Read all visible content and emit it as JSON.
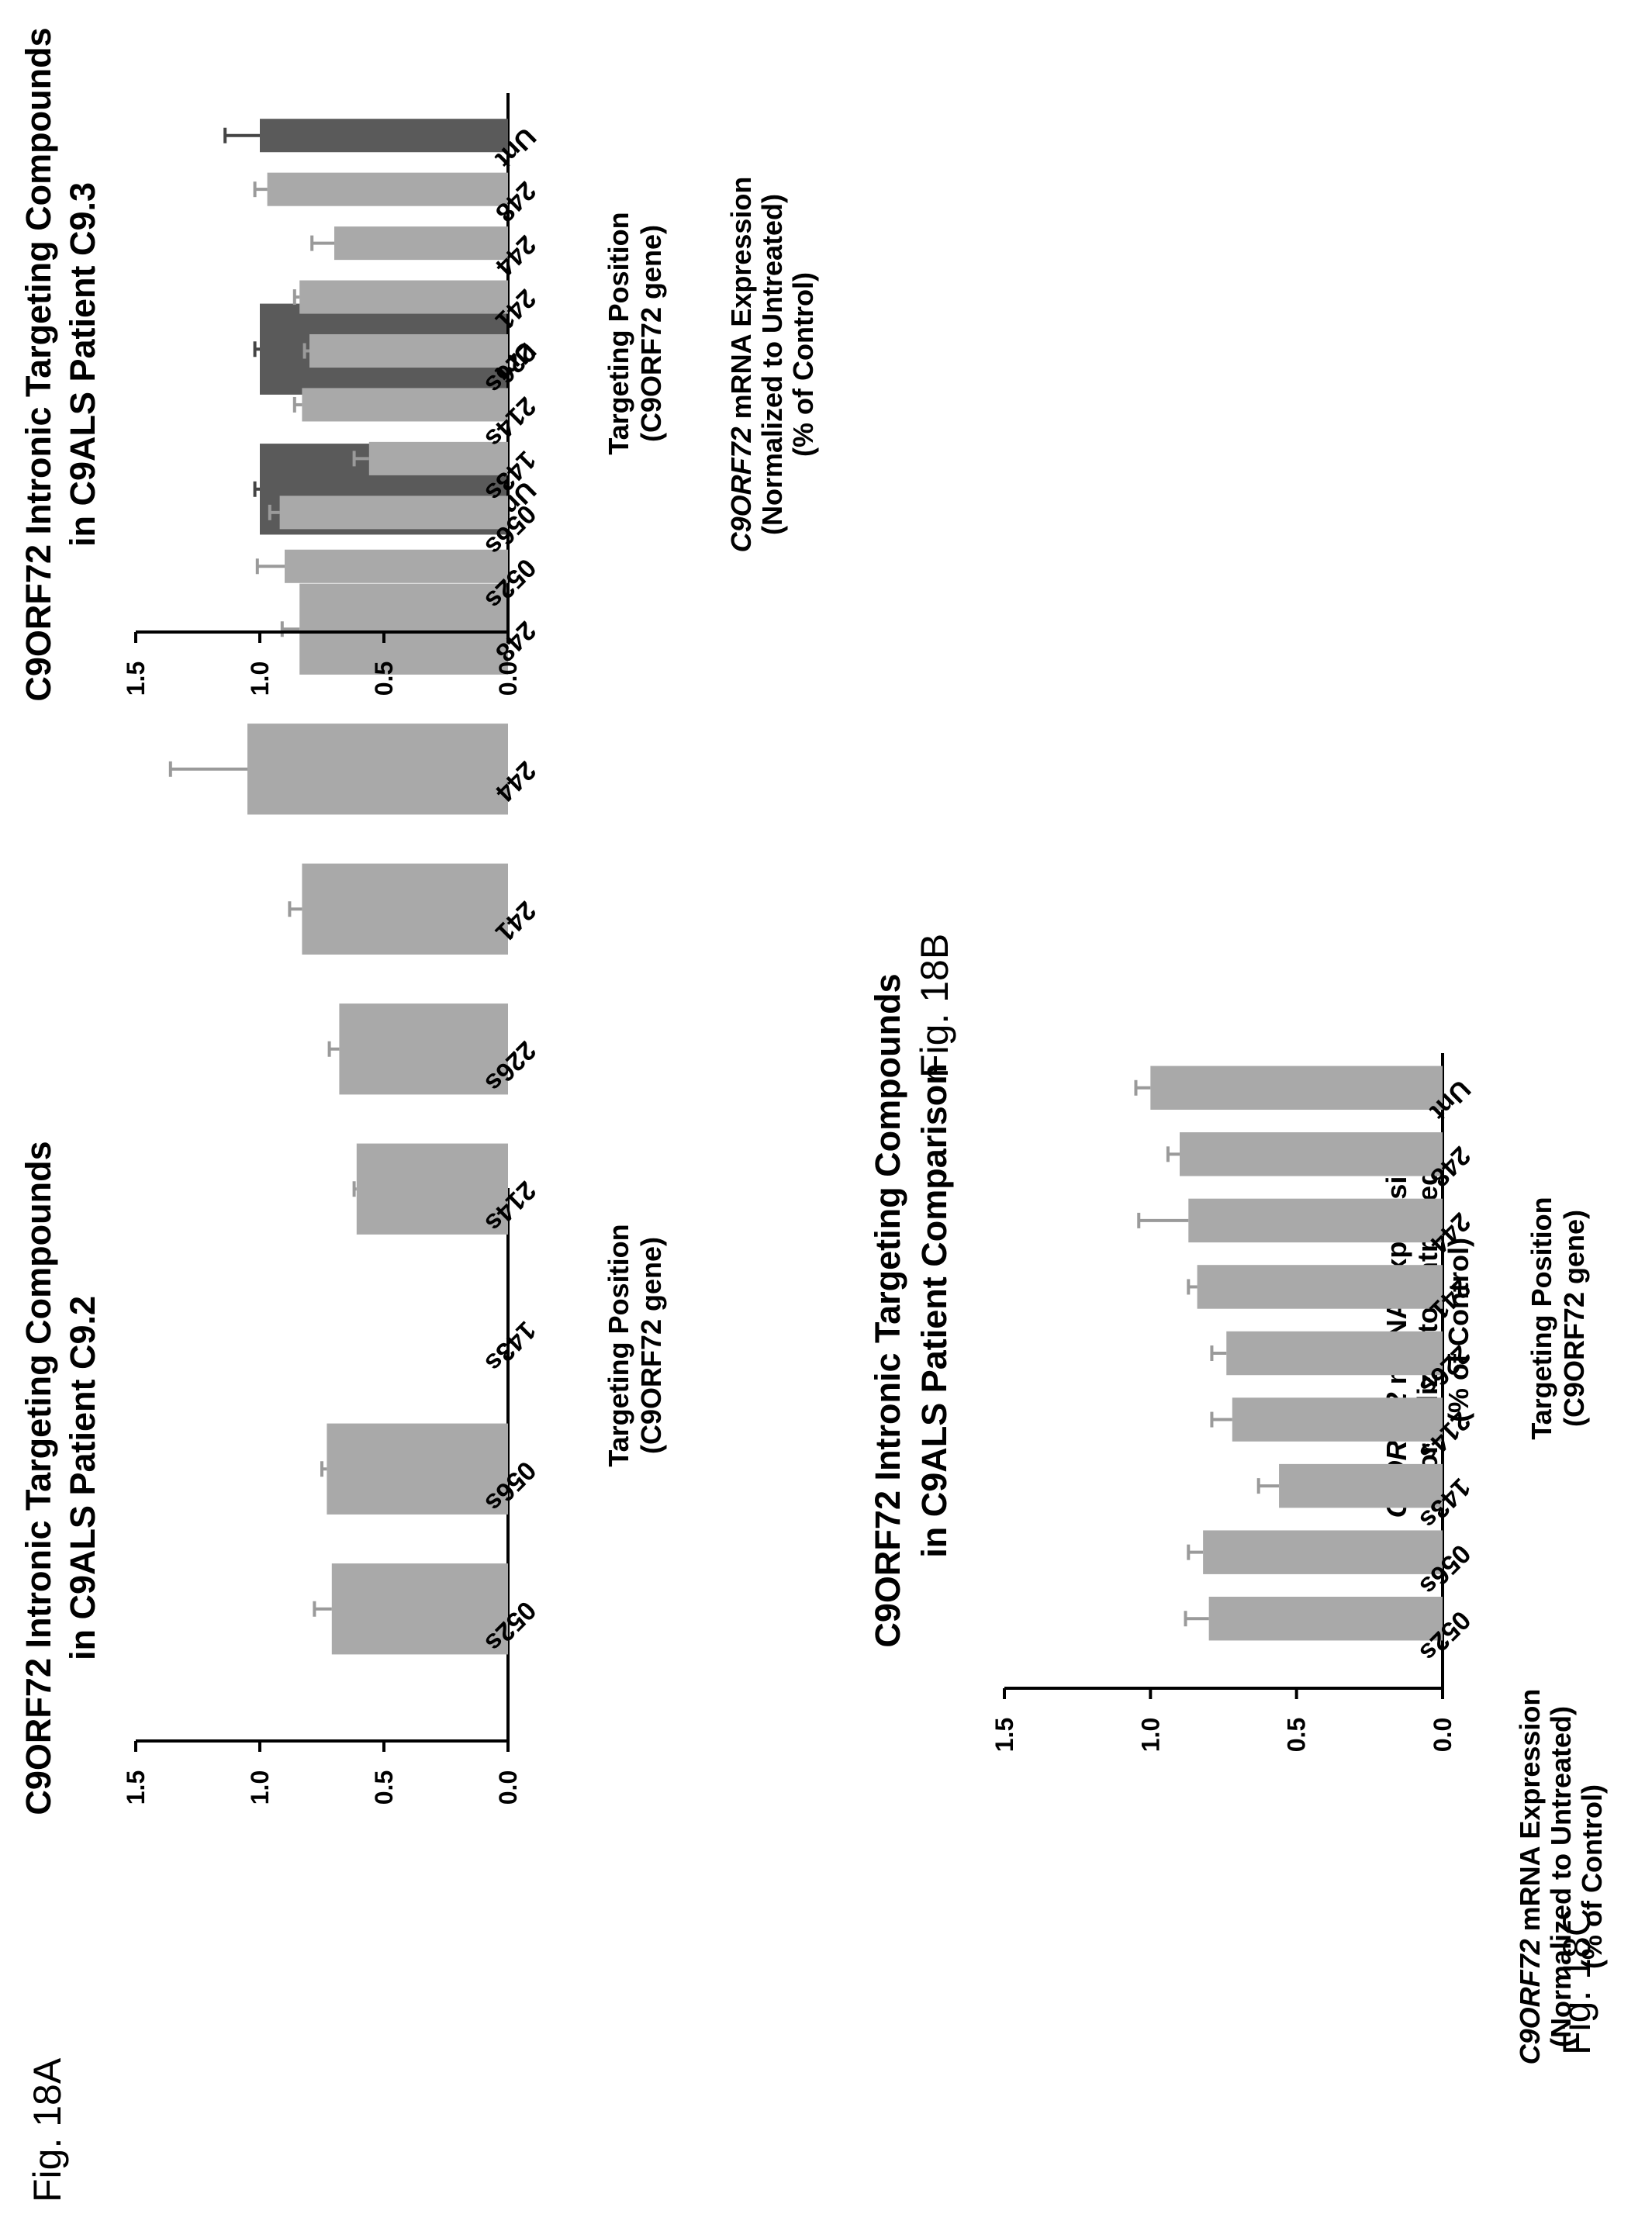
{
  "figures": {
    "fig_a_label": "Fig. 18A",
    "fig_b_label": "Fig. 18B",
    "fig_c_label": "Fig. 18C"
  },
  "colors": {
    "light_bar": "#a9a9a9",
    "dark_bar": "#5a5a5a",
    "error_bar_light": "#9a9a9a",
    "error_bar_dark": "#444444",
    "axis": "#000000"
  },
  "chart_data": [
    {
      "id": "18A",
      "type": "bar",
      "title_lines": [
        "C9ORF72 Intronic Targeting Compounds",
        "in C9ALS Patient C9.2"
      ],
      "ylabel_lines": [
        "C9ORF72 mRNA Expression",
        "(Normalized to Untreated)",
        "(% of Control)"
      ],
      "ylabel_italic_prefix": "C9ORF72",
      "xlabel_lines": [
        "Targeting Position",
        "(C9ORF72 gene)"
      ],
      "ylim": [
        0,
        1.5
      ],
      "yticks": [
        "0.0",
        "0.5",
        "1.0",
        "1.5"
      ],
      "categories": [
        "052s",
        "056s",
        "143s",
        "214s",
        "226s",
        "241",
        "244",
        "248",
        "Unt",
        "Unt"
      ],
      "values": [
        0.71,
        0.73,
        null,
        0.61,
        0.68,
        0.83,
        1.05,
        0.84,
        1.0,
        1.0
      ],
      "errors": [
        0.07,
        0.02,
        null,
        0.01,
        0.04,
        0.05,
        0.31,
        0.07,
        0.02,
        0.02
      ],
      "bar_tone": [
        "light",
        "light",
        "light",
        "light",
        "light",
        "light",
        "light",
        "light",
        "dark",
        "dark"
      ]
    },
    {
      "id": "18B",
      "type": "bar",
      "title_lines": [
        "C9ORF72 Intronic Targeting Compounds",
        "in C9ALS Patient C9.3"
      ],
      "ylabel_lines": [
        "C9ORF72 mRNA Expression",
        "(Normalized to Untreated)",
        "(% of Control)"
      ],
      "ylabel_italic_prefix": "C9ORF72",
      "xlabel_lines": [
        "Targeting Position",
        "(C9ORF72 gene)"
      ],
      "ylim": [
        0,
        1.5
      ],
      "yticks": [
        "0.0",
        "0.5",
        "1.0",
        "1.5"
      ],
      "categories": [
        "052s",
        "056s",
        "143s",
        "214s",
        "226s",
        "241",
        "244",
        "248",
        "Unt"
      ],
      "values": [
        0.9,
        0.92,
        0.56,
        0.83,
        0.8,
        0.84,
        0.7,
        0.97,
        1.0
      ],
      "errors": [
        0.11,
        0.04,
        0.06,
        0.03,
        0.02,
        0.02,
        0.09,
        0.05,
        0.14
      ],
      "bar_tone": [
        "light",
        "light",
        "light",
        "light",
        "light",
        "light",
        "light",
        "light",
        "dark"
      ]
    },
    {
      "id": "18C",
      "type": "bar",
      "title_lines": [
        "C9ORF72 Intronic Targeting Compounds",
        "in C9ALS Patient Comparison"
      ],
      "ylabel_lines": [
        "C9ORF72 mRNA Expression",
        "(Normalized to Untreated)",
        "(% of Control)"
      ],
      "ylabel_italic_prefix": "C9ORF72",
      "xlabel_lines": [
        "Targeting Position",
        "(C9ORF72 gene)"
      ],
      "ylim": [
        0,
        1.5
      ],
      "yticks": [
        "0.0",
        "0.5",
        "1.0",
        "1.5"
      ],
      "categories": [
        "052s",
        "056s",
        "143s",
        "214s",
        "226s",
        "241",
        "244",
        "248",
        "Unt"
      ],
      "values": [
        0.8,
        0.82,
        0.56,
        0.72,
        0.74,
        0.84,
        0.87,
        0.9,
        1.0
      ],
      "errors": [
        0.08,
        0.05,
        0.07,
        0.07,
        0.05,
        0.03,
        0.17,
        0.04,
        0.05
      ],
      "bar_tone": [
        "light",
        "light",
        "light",
        "light",
        "light",
        "light",
        "light",
        "light",
        "light"
      ]
    }
  ]
}
